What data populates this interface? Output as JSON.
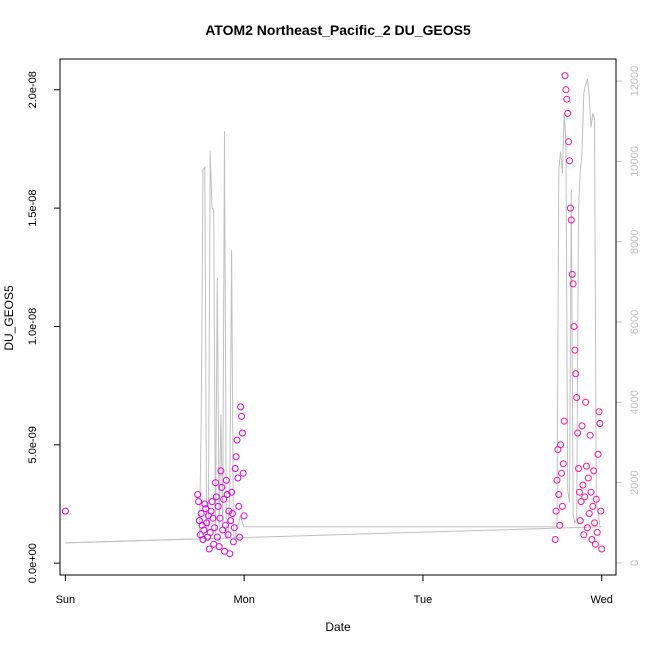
{
  "chart_data": {
    "type": "scatter",
    "title": "ATOM2 Northeast_Pacific_2 DU_GEOS5",
    "xlabel": "Date",
    "ylabel": "DU_GEOS5",
    "x_ticks": [
      "Sun",
      "Mon",
      "Tue",
      "Wed"
    ],
    "y_ticks": [
      "0.0e+00",
      "5.0e-09",
      "1.0e-08",
      "1.5e-08",
      "2.0e-08"
    ],
    "y_tick_values": [
      0,
      5e-09,
      1e-08,
      1.5e-08,
      2e-08
    ],
    "y2_ticks": [
      "0",
      "2000",
      "4000",
      "6000",
      "8000",
      "10000",
      "12000"
    ],
    "y2_tick_values": [
      0,
      2000,
      4000,
      6000,
      8000,
      10000,
      12000
    ],
    "xlim": [
      -0.03,
      3.08
    ],
    "ylim": [
      -5e-10,
      2.13e-08
    ],
    "y2lim": [
      -300,
      12550
    ],
    "colors": {
      "series_start": "#cc00ff",
      "series_end": "#ff1493",
      "altitude_line": "#c0c0c0"
    },
    "altitude_line": {
      "x": [
        0,
        0.75,
        0.76,
        0.77,
        0.78,
        0.79,
        0.8,
        0.81,
        0.82,
        0.83,
        0.84,
        0.85,
        0.86,
        0.87,
        0.88,
        0.89,
        0.9,
        0.91,
        0.92,
        0.93,
        0.94,
        0.95,
        0.96,
        0.97,
        0.98,
        0.99,
        1.0,
        2.75,
        2.76,
        2.77,
        2.78,
        2.79,
        2.8,
        2.81,
        2.82,
        2.83,
        2.84,
        2.85,
        2.86,
        2.87,
        2.88,
        2.89,
        2.9,
        2.91,
        2.92,
        2.93,
        2.94,
        2.95,
        2.96,
        2.97,
        2.98,
        2.99
      ],
      "y": [
        500,
        600,
        3500,
        9800,
        9850,
        800,
        900,
        10250,
        8850,
        8800,
        700,
        7100,
        900,
        3700,
        1000,
        10750,
        600,
        700,
        1800,
        7800,
        700,
        600,
        900,
        1000,
        1200,
        1000,
        900,
        900,
        9800,
        10250,
        9700,
        11200,
        10500,
        1800,
        1500,
        9300,
        1200,
        1000,
        1100,
        8800,
        9700,
        10250,
        11700,
        11900,
        12050,
        11650,
        10850,
        11200,
        11050,
        1500,
        1300,
        900
      ],
      "baseline_x": [
        0,
        3.0
      ],
      "baseline_y": [
        500,
        900
      ]
    },
    "series": [
      {
        "points_x": [
          0.0,
          0.74,
          0.745,
          0.75,
          0.755,
          0.76,
          0.765,
          0.77,
          0.775,
          0.78,
          0.785,
          0.79,
          0.795,
          0.8,
          0.805,
          0.81,
          0.815,
          0.82,
          0.825,
          0.83,
          0.835,
          0.84,
          0.845,
          0.85,
          0.855,
          0.86,
          0.865,
          0.87,
          0.875,
          0.88,
          0.885,
          0.89,
          0.895,
          0.9,
          0.905,
          0.91,
          0.915,
          0.92,
          0.925,
          0.93,
          0.935,
          0.94,
          0.945,
          0.95,
          0.955,
          0.96,
          0.965,
          0.97,
          0.975,
          0.98,
          0.985,
          0.99,
          0.995,
          1.0
        ],
        "points_y": [
          2.2e-09,
          2.9e-09,
          2.6e-09,
          1.8e-09,
          1.2e-09,
          2.1e-09,
          1.6e-09,
          1e-09,
          1.4e-09,
          2.5e-09,
          2.3e-09,
          1.7e-09,
          1.1e-09,
          2e-09,
          6e-10,
          1.3e-09,
          2.2e-09,
          2.6e-09,
          1.9e-09,
          8e-10,
          1.5e-09,
          3.4e-09,
          2.8e-09,
          1.1e-09,
          2.4e-09,
          7e-10,
          1.9e-09,
          3.9e-09,
          3.2e-09,
          1.4e-09,
          2.7e-09,
          5e-10,
          1.6e-09,
          3.5e-09,
          2.9e-09,
          1.2e-09,
          2.2e-09,
          4e-10,
          1.8e-09,
          3e-09,
          2.1e-09,
          9e-10,
          1.5e-09,
          4e-09,
          4.5e-09,
          5.2e-09,
          3.6e-09,
          2.4e-09,
          1.1e-09,
          6.6e-09,
          6.2e-09,
          5.5e-09,
          3.8e-09,
          2e-09
        ]
      },
      {
        "points_x": [
          2.74,
          2.745,
          2.75,
          2.755,
          2.76,
          2.765,
          2.77,
          2.775,
          2.78,
          2.785,
          2.79,
          2.795,
          2.8,
          2.805,
          2.81,
          2.815,
          2.82,
          2.825,
          2.83,
          2.835,
          2.84,
          2.845,
          2.85,
          2.855,
          2.86,
          2.865,
          2.87,
          2.875,
          2.88,
          2.885,
          2.89,
          2.895,
          2.9,
          2.905,
          2.91,
          2.915,
          2.92,
          2.925,
          2.93,
          2.935,
          2.94,
          2.945,
          2.95,
          2.955,
          2.96,
          2.965,
          2.97,
          2.975,
          2.98,
          2.985,
          2.99,
          2.995,
          3.0
        ],
        "points_y": [
          1e-09,
          2.2e-09,
          3.5e-09,
          4.8e-09,
          2.9e-09,
          1.6e-09,
          5e-09,
          3.8e-09,
          2.4e-09,
          4.2e-09,
          6e-09,
          2.06e-08,
          2e-08,
          1.96e-08,
          1.9e-08,
          1.78e-08,
          1.7e-08,
          1.5e-08,
          1.45e-08,
          1.22e-08,
          1.18e-08,
          1e-08,
          9e-09,
          8e-09,
          7e-09,
          5.5e-09,
          4e-09,
          3e-09,
          1.8e-09,
          2.6e-09,
          5.8e-09,
          3.3e-09,
          1.2e-09,
          2.8e-09,
          6.8e-09,
          4.1e-09,
          1.5e-09,
          3.6e-09,
          2.1e-09,
          5.4e-09,
          3e-09,
          1e-09,
          2.4e-09,
          3.9e-09,
          1.7e-09,
          8e-10,
          2.7e-09,
          1.3e-09,
          4.6e-09,
          6.4e-09,
          5.9e-09,
          2.2e-09,
          6e-10
        ]
      }
    ]
  }
}
